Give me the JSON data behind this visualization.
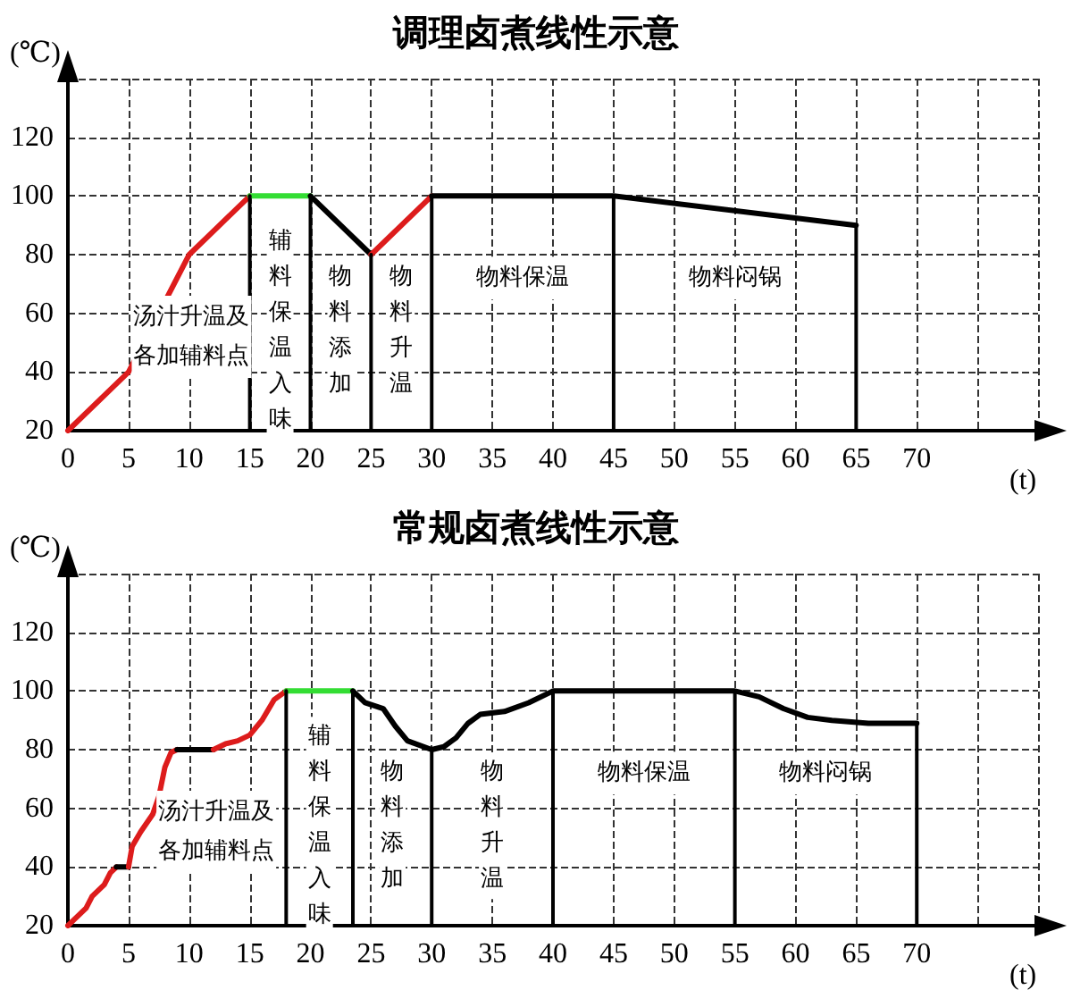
{
  "chart_data": [
    {
      "type": "line",
      "title": "调理卤煮线性示意",
      "xlabel": "(t)",
      "ylabel": "(℃)",
      "xlim": [
        0,
        80
      ],
      "xticks": [
        0,
        5,
        10,
        15,
        20,
        25,
        30,
        35,
        40,
        45,
        50,
        55,
        60,
        65,
        70
      ],
      "ylim": [
        20,
        140
      ],
      "yticks": [
        20,
        40,
        60,
        80,
        100,
        120
      ],
      "grid": true,
      "marker": "none",
      "line_style": "solid",
      "series": [
        {
          "color": "#dd1c1c",
          "x": [
            0,
            5,
            10,
            15
          ],
          "values": [
            20,
            40,
            80,
            100
          ]
        },
        {
          "color": "#33dd33",
          "x": [
            15,
            20
          ],
          "values": [
            100,
            100
          ]
        },
        {
          "color": "#000000",
          "x": [
            20,
            25
          ],
          "values": [
            100,
            80
          ]
        },
        {
          "color": "#dd1c1c",
          "x": [
            25,
            30
          ],
          "values": [
            80,
            100
          ]
        },
        {
          "color": "#000000",
          "x": [
            30,
            45,
            65
          ],
          "values": [
            100,
            100,
            90
          ]
        },
        {
          "color": "#000000",
          "x": [
            15,
            15
          ],
          "values": [
            20,
            100
          ]
        },
        {
          "color": "#000000",
          "x": [
            20,
            20
          ],
          "values": [
            20,
            100
          ]
        },
        {
          "color": "#000000",
          "x": [
            25,
            25
          ],
          "values": [
            20,
            80
          ]
        },
        {
          "color": "#000000",
          "x": [
            30,
            30
          ],
          "values": [
            20,
            100
          ]
        },
        {
          "color": "#000000",
          "x": [
            45,
            45
          ],
          "values": [
            20,
            100
          ]
        },
        {
          "color": "#000000",
          "x": [
            65,
            65
          ],
          "values": [
            20,
            90
          ]
        }
      ],
      "annotations": [
        "汤汁升温及各加辅料点",
        "辅料保温入味",
        "物料添加",
        "物料升温",
        "物料保温",
        "物料闷锅"
      ]
    },
    {
      "type": "line",
      "title": "常规卤煮线性示意",
      "xlabel": "(t)",
      "ylabel": "(℃)",
      "xlim": [
        0,
        80
      ],
      "xticks": [
        0,
        5,
        10,
        15,
        20,
        25,
        30,
        35,
        40,
        45,
        50,
        55,
        60,
        65,
        70
      ],
      "ylim": [
        20,
        140
      ],
      "yticks": [
        20,
        40,
        60,
        80,
        100,
        120
      ],
      "grid": true,
      "marker": "none",
      "line_style": "solid",
      "series": [
        {
          "color": "#dd1c1c",
          "x": [
            0,
            0.5,
            1,
            1.5,
            2,
            2.5,
            3,
            3.5,
            4
          ],
          "values": [
            20,
            22,
            24,
            26,
            30,
            32,
            34,
            38,
            40
          ]
        },
        {
          "color": "#000000",
          "x": [
            4,
            5
          ],
          "values": [
            40,
            40
          ]
        },
        {
          "color": "#dd1c1c",
          "x": [
            5,
            5.3,
            6,
            7,
            7.5,
            8,
            8.5,
            9
          ],
          "values": [
            40,
            47,
            52,
            58,
            64,
            74,
            79,
            80
          ]
        },
        {
          "color": "#000000",
          "x": [
            9,
            12
          ],
          "values": [
            80,
            80
          ]
        },
        {
          "color": "#dd1c1c",
          "x": [
            12,
            13,
            14,
            15,
            16,
            17,
            18
          ],
          "values": [
            80,
            82,
            83,
            85,
            90,
            97,
            100
          ]
        },
        {
          "color": "#33dd33",
          "x": [
            18,
            23.5
          ],
          "values": [
            100,
            100
          ]
        },
        {
          "color": "#000000",
          "x": [
            23.5,
            24.5,
            26,
            27,
            28,
            30,
            31,
            32,
            33,
            34,
            36,
            38,
            40,
            55,
            57,
            59,
            61,
            63,
            66,
            69,
            70
          ],
          "values": [
            100,
            96,
            94,
            88,
            83,
            80,
            81,
            84,
            89,
            92,
            93,
            96,
            100,
            100,
            98,
            94,
            91,
            90,
            89,
            89,
            89
          ]
        },
        {
          "color": "#000000",
          "x": [
            18,
            18
          ],
          "values": [
            20,
            100
          ]
        },
        {
          "color": "#000000",
          "x": [
            23.5,
            23.5
          ],
          "values": [
            20,
            100
          ]
        },
        {
          "color": "#000000",
          "x": [
            30,
            30
          ],
          "values": [
            20,
            80
          ]
        },
        {
          "color": "#000000",
          "x": [
            40,
            40
          ],
          "values": [
            20,
            100
          ]
        },
        {
          "color": "#000000",
          "x": [
            55,
            55
          ],
          "values": [
            20,
            100
          ]
        },
        {
          "color": "#000000",
          "x": [
            70,
            70
          ],
          "values": [
            20,
            89
          ]
        }
      ],
      "annotations": [
        "汤汁升温及各加辅料点",
        "辅料保温入味",
        "物料添加",
        "物料升温",
        "物料保温",
        "物料闷锅"
      ]
    }
  ]
}
